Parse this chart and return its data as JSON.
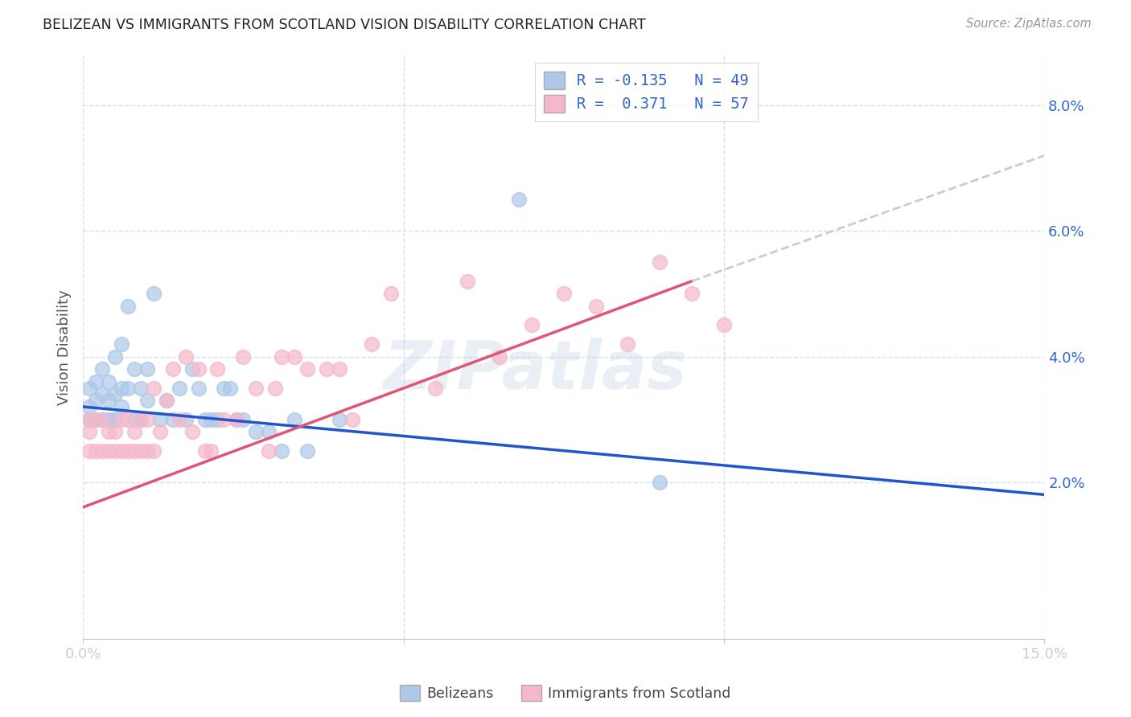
{
  "title": "BELIZEAN VS IMMIGRANTS FROM SCOTLAND VISION DISABILITY CORRELATION CHART",
  "source": "Source: ZipAtlas.com",
  "ylabel": "Vision Disability",
  "xlim": [
    0.0,
    0.15
  ],
  "ylim": [
    -0.005,
    0.088
  ],
  "y_ticks": [
    0.02,
    0.04,
    0.06,
    0.08
  ],
  "y_tick_labels": [
    "2.0%",
    "4.0%",
    "6.0%",
    "8.0%"
  ],
  "x_ticks": [
    0.0,
    0.05,
    0.1,
    0.15
  ],
  "x_tick_labels": [
    "0.0%",
    "",
    "",
    "15.0%"
  ],
  "belizean_R": -0.135,
  "belizean_N": 49,
  "scotland_R": 0.371,
  "scotland_N": 57,
  "belizean_color": "#adc8e8",
  "scotland_color": "#f5b8cb",
  "belizean_line_color": "#2255cc",
  "scotland_line_color": "#e05575",
  "trendline_ext_color": "#cccccc",
  "watermark": "ZIPatlas",
  "belizean_trendline": [
    0.0,
    0.15,
    0.032,
    0.018
  ],
  "scotland_trendline_solid": [
    0.0,
    0.095,
    0.016,
    0.052
  ],
  "scotland_trendline_dashed": [
    0.095,
    0.15,
    0.052,
    0.072
  ],
  "belizean_x": [
    0.001,
    0.001,
    0.001,
    0.002,
    0.002,
    0.002,
    0.003,
    0.003,
    0.003,
    0.004,
    0.004,
    0.004,
    0.005,
    0.005,
    0.005,
    0.006,
    0.006,
    0.006,
    0.007,
    0.007,
    0.008,
    0.008,
    0.009,
    0.009,
    0.01,
    0.01,
    0.011,
    0.012,
    0.013,
    0.014,
    0.015,
    0.016,
    0.017,
    0.018,
    0.019,
    0.02,
    0.021,
    0.022,
    0.023,
    0.024,
    0.025,
    0.027,
    0.029,
    0.031,
    0.033,
    0.035,
    0.04,
    0.068,
    0.09
  ],
  "belizean_y": [
    0.03,
    0.032,
    0.035,
    0.03,
    0.033,
    0.036,
    0.03,
    0.034,
    0.038,
    0.03,
    0.033,
    0.036,
    0.03,
    0.034,
    0.04,
    0.032,
    0.035,
    0.042,
    0.035,
    0.048,
    0.03,
    0.038,
    0.03,
    0.035,
    0.033,
    0.038,
    0.05,
    0.03,
    0.033,
    0.03,
    0.035,
    0.03,
    0.038,
    0.035,
    0.03,
    0.03,
    0.03,
    0.035,
    0.035,
    0.03,
    0.03,
    0.028,
    0.028,
    0.025,
    0.03,
    0.025,
    0.03,
    0.065,
    0.02
  ],
  "scotland_x": [
    0.001,
    0.001,
    0.001,
    0.002,
    0.002,
    0.003,
    0.003,
    0.004,
    0.004,
    0.005,
    0.005,
    0.006,
    0.006,
    0.007,
    0.007,
    0.008,
    0.008,
    0.009,
    0.009,
    0.01,
    0.01,
    0.011,
    0.011,
    0.012,
    0.013,
    0.014,
    0.015,
    0.016,
    0.017,
    0.018,
    0.019,
    0.02,
    0.021,
    0.022,
    0.024,
    0.025,
    0.027,
    0.029,
    0.03,
    0.031,
    0.033,
    0.035,
    0.038,
    0.04,
    0.042,
    0.045,
    0.048,
    0.055,
    0.06,
    0.065,
    0.07,
    0.075,
    0.08,
    0.085,
    0.09,
    0.095,
    0.1
  ],
  "scotland_y": [
    0.025,
    0.028,
    0.03,
    0.025,
    0.03,
    0.025,
    0.03,
    0.025,
    0.028,
    0.025,
    0.028,
    0.025,
    0.03,
    0.025,
    0.03,
    0.025,
    0.028,
    0.025,
    0.03,
    0.025,
    0.03,
    0.025,
    0.035,
    0.028,
    0.033,
    0.038,
    0.03,
    0.04,
    0.028,
    0.038,
    0.025,
    0.025,
    0.038,
    0.03,
    0.03,
    0.04,
    0.035,
    0.025,
    0.035,
    0.04,
    0.04,
    0.038,
    0.038,
    0.038,
    0.03,
    0.042,
    0.05,
    0.035,
    0.052,
    0.04,
    0.045,
    0.05,
    0.048,
    0.042,
    0.055,
    0.05,
    0.045
  ],
  "background_color": "#ffffff",
  "grid_color": "#d0dde8",
  "spine_color": "#cccccc"
}
